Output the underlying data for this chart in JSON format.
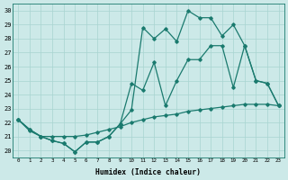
{
  "xlabel": "Humidex (Indice chaleur)",
  "ylabel": "",
  "xlim": [
    -0.5,
    23.5
  ],
  "ylim": [
    19.5,
    30.5
  ],
  "xticks": [
    0,
    1,
    2,
    3,
    4,
    5,
    6,
    7,
    8,
    9,
    10,
    11,
    12,
    13,
    14,
    15,
    16,
    17,
    18,
    19,
    20,
    21,
    22,
    23
  ],
  "yticks": [
    20,
    21,
    22,
    23,
    24,
    25,
    26,
    27,
    28,
    29,
    30
  ],
  "bg_color": "#cce9e8",
  "line_color": "#1a7a6e",
  "grid_color": "#a8d4d0",
  "line1_x": [
    0,
    1,
    2,
    3,
    4,
    5,
    6,
    7,
    8,
    9,
    10,
    11,
    12,
    13,
    14,
    15,
    16,
    17,
    18,
    19,
    20,
    21,
    22,
    23
  ],
  "line1_y": [
    22.2,
    21.5,
    21.0,
    20.7,
    20.5,
    19.9,
    20.6,
    20.6,
    21.0,
    21.9,
    22.9,
    28.8,
    28.0,
    28.7,
    27.8,
    30.0,
    29.5,
    29.5,
    28.2,
    29.0,
    27.5,
    25.0,
    24.8,
    23.2
  ],
  "line2_x": [
    0,
    1,
    2,
    3,
    4,
    5,
    6,
    7,
    8,
    9,
    10,
    11,
    12,
    13,
    14,
    15,
    16,
    17,
    18,
    19,
    20,
    21,
    22,
    23
  ],
  "line2_y": [
    22.2,
    21.5,
    21.0,
    20.7,
    20.5,
    19.9,
    20.6,
    20.6,
    21.0,
    21.9,
    24.8,
    24.3,
    26.3,
    23.2,
    25.0,
    26.5,
    26.5,
    27.5,
    27.5,
    24.5,
    27.5,
    25.0,
    24.8,
    23.2
  ],
  "line3_x": [
    0,
    1,
    2,
    3,
    4,
    5,
    6,
    7,
    8,
    9,
    10,
    11,
    12,
    13,
    14,
    15,
    16,
    17,
    18,
    19,
    20,
    21,
    22,
    23
  ],
  "line3_y": [
    22.2,
    21.4,
    21.0,
    21.0,
    21.0,
    21.0,
    21.1,
    21.3,
    21.5,
    21.7,
    22.0,
    22.2,
    22.4,
    22.5,
    22.6,
    22.8,
    22.9,
    23.0,
    23.1,
    23.2,
    23.3,
    23.3,
    23.3,
    23.2
  ]
}
